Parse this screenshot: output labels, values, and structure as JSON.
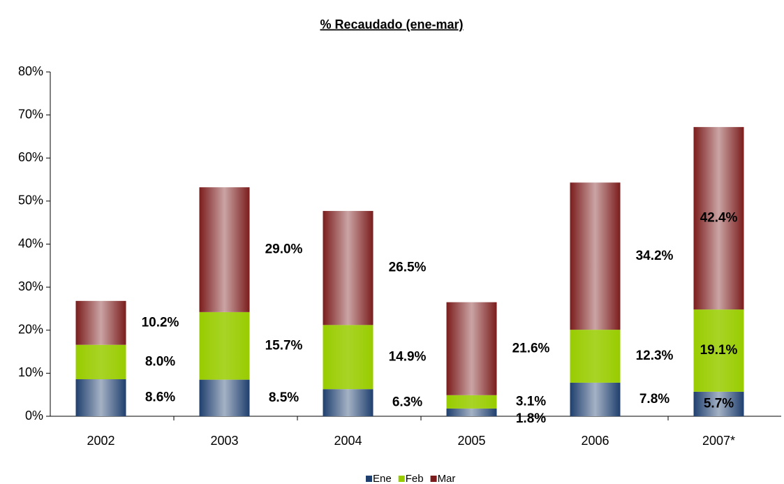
{
  "chart_data": {
    "type": "stacked_bar",
    "title": "% Recaudado (ene-mar)",
    "categories": [
      "2002",
      "2003",
      "2004",
      "2005",
      "2006",
      "2007*"
    ],
    "series": [
      {
        "name": "Ene",
        "color": "#1f3f6e",
        "values": [
          8.6,
          8.5,
          6.3,
          1.8,
          7.8,
          5.7
        ],
        "value_labels": [
          "8.6%",
          "8.5%",
          "6.3%",
          "1.8%",
          "7.8%",
          "5.7%"
        ]
      },
      {
        "name": "Feb",
        "color": "#99cc00",
        "values": [
          8.0,
          15.7,
          14.9,
          3.1,
          12.3,
          19.1
        ],
        "value_labels": [
          "8.0%",
          "15.7%",
          "14.9%",
          "3.1%",
          "12.3%",
          "19.1%"
        ]
      },
      {
        "name": "Mar",
        "color": "#7b1c1c",
        "values": [
          10.2,
          29.0,
          26.5,
          21.6,
          34.2,
          42.4
        ],
        "value_labels": [
          "10.2%",
          "29.0%",
          "26.5%",
          "21.6%",
          "34.2%",
          "42.4%"
        ]
      }
    ],
    "ylim": [
      0,
      80
    ],
    "yticks": [
      {
        "value": 0,
        "label": "0%"
      },
      {
        "value": 10,
        "label": "10%"
      },
      {
        "value": 20,
        "label": "20%"
      },
      {
        "value": 30,
        "label": "30%"
      },
      {
        "value": 40,
        "label": "40%"
      },
      {
        "value": 50,
        "label": "50%"
      },
      {
        "value": 60,
        "label": "60%"
      },
      {
        "value": 70,
        "label": "70%"
      },
      {
        "value": 80,
        "label": "80%"
      }
    ],
    "legend": "bottom"
  }
}
